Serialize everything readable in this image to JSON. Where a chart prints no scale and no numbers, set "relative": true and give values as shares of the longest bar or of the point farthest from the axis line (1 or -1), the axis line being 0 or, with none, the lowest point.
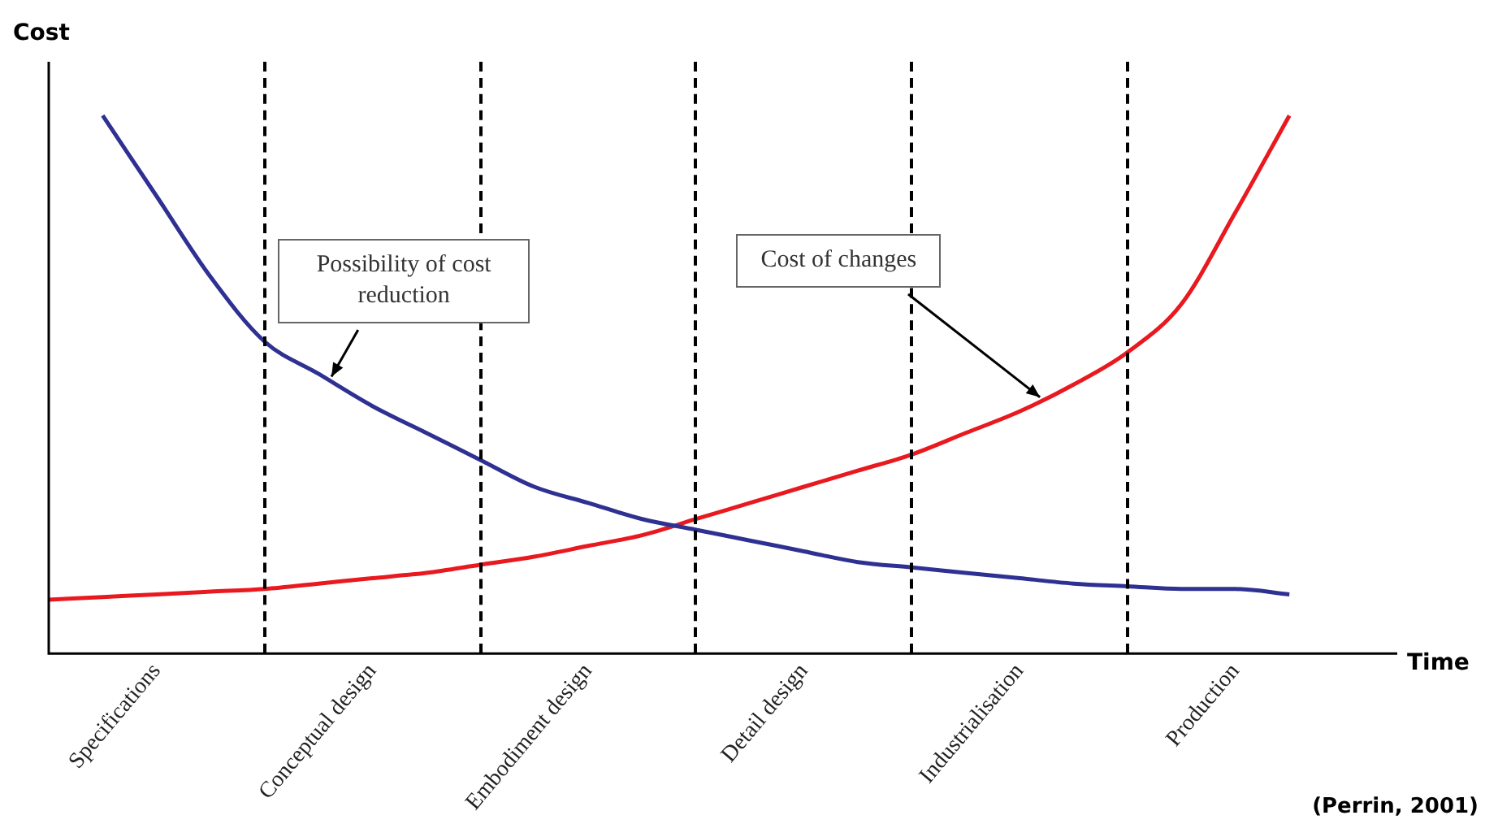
{
  "chart_data": {
    "type": "line",
    "relative": true,
    "xlabel": "Time",
    "ylabel": "Cost",
    "categories": [
      null,
      null,
      "Specifications",
      null,
      null,
      null,
      "Conceptual design",
      null,
      null,
      null,
      "Embodiment design",
      null,
      null,
      null,
      "Detail design",
      null,
      null,
      null,
      "Industrialisation",
      null,
      null,
      null,
      "Production",
      null,
      null,
      null
    ],
    "series": [
      {
        "color": "#2e3192",
        "values": [
          null,
          1.0,
          0.85,
          0.7,
          0.58,
          0.52,
          0.46,
          0.41,
          0.36,
          0.31,
          0.28,
          0.25,
          0.23,
          0.21,
          0.19,
          0.17,
          0.16,
          0.15,
          0.14,
          0.13,
          0.125,
          0.12,
          0.12,
          0.11,
          null,
          null
        ]
      },
      {
        "color": "#e8191f",
        "values": [
          0.1,
          0.105,
          0.11,
          0.115,
          0.12,
          0.13,
          0.14,
          0.15,
          0.165,
          0.18,
          0.2,
          0.22,
          0.25,
          0.28,
          0.31,
          0.34,
          0.37,
          0.41,
          0.45,
          0.5,
          0.56,
          0.65,
          0.82,
          1.0,
          null,
          null
        ]
      }
    ],
    "annotations": [
      "Possibility of cost reduction",
      "Cost of changes",
      "(Perrin, 2001)"
    ],
    "grid": "x",
    "legend": false,
    "marker": "none",
    "line_style": "solid"
  }
}
